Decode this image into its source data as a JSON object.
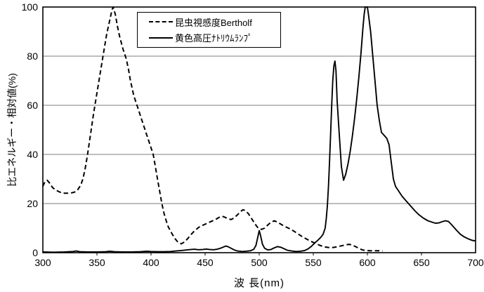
{
  "colors": {
    "line": "#000000",
    "grid": "#7d7d7d",
    "background": "#ffffff",
    "border": "#000000"
  },
  "axes": {
    "x_title": "波 長(nm)",
    "y_title": "比エネルギー・相対値(%)",
    "x_ticks": [
      300,
      350,
      400,
      450,
      500,
      550,
      600,
      650,
      700
    ],
    "y_ticks": [
      0,
      20,
      40,
      60,
      80,
      100
    ]
  },
  "legend": {
    "items": [
      {
        "label": "昆虫視感度Bertholf",
        "style": "dashed"
      },
      {
        "label": "黄色高圧ﾅﾄﾘｳﾑﾗﾝﾌﾟ",
        "style": "solid"
      }
    ]
  },
  "chart_data": {
    "type": "line",
    "title": "",
    "xlabel": "波 長(nm)",
    "ylabel": "比エネルギー・相対値(%)",
    "xlim": [
      300,
      700
    ],
    "ylim": [
      0,
      100
    ],
    "grid": "horizontal-only",
    "legend_position": "top-left-inside",
    "x_units": "nm",
    "y_units": "%",
    "series": [
      {
        "name": "昆虫視感度Bertholf",
        "style": "dashed",
        "points": [
          [
            300,
            27
          ],
          [
            302,
            29
          ],
          [
            304,
            29.5
          ],
          [
            306,
            28.5
          ],
          [
            309,
            26.5
          ],
          [
            312,
            25.5
          ],
          [
            316,
            24.6
          ],
          [
            320,
            24.2
          ],
          [
            325,
            24.2
          ],
          [
            329,
            24.6
          ],
          [
            332,
            25.5
          ],
          [
            335,
            27.5
          ],
          [
            337,
            30
          ],
          [
            339,
            34
          ],
          [
            341,
            39
          ],
          [
            344,
            48
          ],
          [
            347,
            57
          ],
          [
            350,
            65
          ],
          [
            353,
            73
          ],
          [
            356,
            81
          ],
          [
            359,
            89
          ],
          [
            362,
            95
          ],
          [
            364,
            99
          ],
          [
            365,
            100
          ],
          [
            367,
            97
          ],
          [
            369,
            92
          ],
          [
            371,
            88
          ],
          [
            374,
            83
          ],
          [
            377,
            79
          ],
          [
            379,
            75
          ],
          [
            381,
            70
          ],
          [
            384,
            64
          ],
          [
            387,
            60
          ],
          [
            390,
            56
          ],
          [
            393,
            52
          ],
          [
            396,
            48
          ],
          [
            399,
            44
          ],
          [
            402,
            40
          ],
          [
            404,
            35
          ],
          [
            406,
            30
          ],
          [
            408,
            25
          ],
          [
            410,
            20
          ],
          [
            412,
            16
          ],
          [
            414,
            13
          ],
          [
            416,
            10.5
          ],
          [
            419,
            8
          ],
          [
            422,
            5.8
          ],
          [
            425,
            4.2
          ],
          [
            428,
            3.6
          ],
          [
            431,
            4.4
          ],
          [
            434,
            5.8
          ],
          [
            437,
            7.4
          ],
          [
            440,
            8.8
          ],
          [
            444,
            10.3
          ],
          [
            448,
            11.2
          ],
          [
            452,
            12
          ],
          [
            456,
            12.8
          ],
          [
            460,
            13.6
          ],
          [
            463,
            14.4
          ],
          [
            466,
            14.8
          ],
          [
            468,
            14.5
          ],
          [
            471,
            13.9
          ],
          [
            474,
            13.5
          ],
          [
            477,
            14.2
          ],
          [
            480,
            15.5
          ],
          [
            483,
            16.8
          ],
          [
            485,
            17.5
          ],
          [
            487,
            17.2
          ],
          [
            490,
            15.9
          ],
          [
            493,
            13.9
          ],
          [
            496,
            11.8
          ],
          [
            499,
            10
          ],
          [
            502,
            9.5
          ],
          [
            505,
            10
          ],
          [
            508,
            11.3
          ],
          [
            511,
            12.4
          ],
          [
            514,
            13
          ],
          [
            517,
            12.4
          ],
          [
            520,
            11.6
          ],
          [
            524,
            10.6
          ],
          [
            528,
            9.8
          ],
          [
            532,
            8.8
          ],
          [
            536,
            7.6
          ],
          [
            540,
            6.5
          ],
          [
            544,
            5.5
          ],
          [
            548,
            4.6
          ],
          [
            552,
            3.8
          ],
          [
            556,
            3
          ],
          [
            560,
            2.4
          ],
          [
            564,
            2.1
          ],
          [
            568,
            2.1
          ],
          [
            572,
            2.4
          ],
          [
            576,
            2.8
          ],
          [
            580,
            3.2
          ],
          [
            583,
            3.4
          ],
          [
            586,
            3.1
          ],
          [
            589,
            2.5
          ],
          [
            592,
            1.8
          ],
          [
            595,
            1.2
          ],
          [
            598,
            0.9
          ],
          [
            602,
            0.8
          ],
          [
            606,
            0.8
          ],
          [
            610,
            0.8
          ],
          [
            614,
            0.7
          ]
        ]
      },
      {
        "name": "黄色高圧ﾅﾄﾘｳﾑﾗﾝﾌﾟ",
        "style": "solid",
        "points": [
          [
            300,
            0.3
          ],
          [
            310,
            0.2
          ],
          [
            320,
            0.3
          ],
          [
            328,
            0.5
          ],
          [
            331,
            0.7
          ],
          [
            334,
            0.4
          ],
          [
            342,
            0.3
          ],
          [
            350,
            0.3
          ],
          [
            358,
            0.4
          ],
          [
            362,
            0.6
          ],
          [
            366,
            0.4
          ],
          [
            374,
            0.3
          ],
          [
            382,
            0.3
          ],
          [
            390,
            0.4
          ],
          [
            396,
            0.6
          ],
          [
            400,
            0.5
          ],
          [
            406,
            0.4
          ],
          [
            412,
            0.4
          ],
          [
            418,
            0.5
          ],
          [
            423,
            0.7
          ],
          [
            428,
            0.9
          ],
          [
            433,
            1.1
          ],
          [
            437,
            1.3
          ],
          [
            440,
            1.4
          ],
          [
            444,
            1.2
          ],
          [
            448,
            1.3
          ],
          [
            451,
            1.5
          ],
          [
            454,
            1.3
          ],
          [
            458,
            1.2
          ],
          [
            461,
            1.4
          ],
          [
            464,
            1.8
          ],
          [
            467,
            2.3
          ],
          [
            469,
            2.7
          ],
          [
            471,
            2.5
          ],
          [
            474,
            1.8
          ],
          [
            477,
            1.1
          ],
          [
            480,
            0.7
          ],
          [
            484,
            0.5
          ],
          [
            488,
            0.6
          ],
          [
            492,
            0.8
          ],
          [
            495,
            1.4
          ],
          [
            497,
            3
          ],
          [
            499,
            7
          ],
          [
            500,
            9
          ],
          [
            501,
            7.5
          ],
          [
            503,
            3.5
          ],
          [
            505,
            1.8
          ],
          [
            508,
            1.1
          ],
          [
            511,
            1.3
          ],
          [
            514,
            2
          ],
          [
            517,
            2.5
          ],
          [
            520,
            2.2
          ],
          [
            523,
            1.6
          ],
          [
            526,
            1
          ],
          [
            530,
            0.7
          ],
          [
            534,
            0.5
          ],
          [
            538,
            0.6
          ],
          [
            542,
            0.9
          ],
          [
            545,
            1.5
          ],
          [
            548,
            2.5
          ],
          [
            551,
            3.8
          ],
          [
            554,
            5
          ],
          [
            557,
            6.3
          ],
          [
            559,
            7.5
          ],
          [
            561,
            10
          ],
          [
            562,
            14
          ],
          [
            563,
            19
          ],
          [
            564,
            27
          ],
          [
            565,
            37
          ],
          [
            566,
            48
          ],
          [
            567,
            60
          ],
          [
            568,
            70
          ],
          [
            569,
            76
          ],
          [
            570,
            78
          ],
          [
            571,
            74
          ],
          [
            572,
            62
          ],
          [
            574,
            48
          ],
          [
            576,
            35
          ],
          [
            578,
            29.5
          ],
          [
            580,
            32
          ],
          [
            582,
            36
          ],
          [
            584,
            41
          ],
          [
            586,
            47
          ],
          [
            588,
            54
          ],
          [
            590,
            62
          ],
          [
            592,
            71
          ],
          [
            594,
            81
          ],
          [
            596,
            92
          ],
          [
            597,
            97
          ],
          [
            598,
            100
          ],
          [
            600,
            100
          ],
          [
            601,
            97
          ],
          [
            603,
            90
          ],
          [
            605,
            80
          ],
          [
            607,
            70
          ],
          [
            609,
            60
          ],
          [
            611,
            54
          ],
          [
            613,
            49
          ],
          [
            615,
            48
          ],
          [
            618,
            46.5
          ],
          [
            620,
            44
          ],
          [
            622,
            37
          ],
          [
            624,
            30
          ],
          [
            626,
            27
          ],
          [
            629,
            25
          ],
          [
            632,
            23
          ],
          [
            636,
            21
          ],
          [
            640,
            19
          ],
          [
            644,
            17
          ],
          [
            648,
            15.3
          ],
          [
            652,
            14
          ],
          [
            656,
            13
          ],
          [
            660,
            12.4
          ],
          [
            663,
            12
          ],
          [
            666,
            12.1
          ],
          [
            669,
            12.6
          ],
          [
            672,
            13
          ],
          [
            675,
            12.7
          ],
          [
            678,
            11.3
          ],
          [
            682,
            9.3
          ],
          [
            686,
            7.5
          ],
          [
            690,
            6.3
          ],
          [
            694,
            5.5
          ],
          [
            697,
            5
          ],
          [
            700,
            4.8
          ]
        ]
      }
    ]
  }
}
